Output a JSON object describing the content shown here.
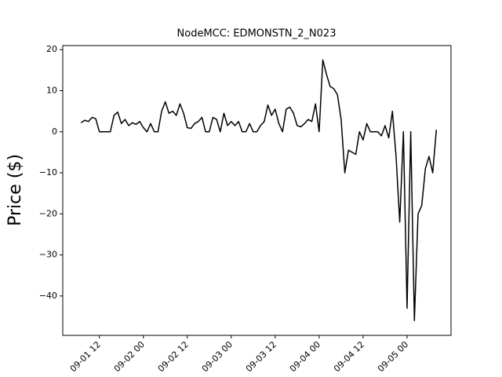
{
  "chart_data": {
    "type": "line",
    "title": "NodeMCC: EDMONSTN_2_N023",
    "y_label": "Price ($)",
    "x": [
      "09-01 07",
      "09-01 08",
      "09-01 09",
      "09-01 10",
      "09-01 11",
      "09-01 12",
      "09-01 13",
      "09-01 14",
      "09-01 15",
      "09-01 16",
      "09-01 17",
      "09-01 18",
      "09-01 19",
      "09-01 20",
      "09-01 21",
      "09-01 22",
      "09-01 23",
      "09-02 00",
      "09-02 01",
      "09-02 02",
      "09-02 03",
      "09-02 04",
      "09-02 05",
      "09-02 06",
      "09-02 07",
      "09-02 08",
      "09-02 09",
      "09-02 10",
      "09-02 11",
      "09-02 12",
      "09-02 13",
      "09-02 14",
      "09-02 15",
      "09-02 16",
      "09-02 17",
      "09-02 18",
      "09-02 19",
      "09-02 20",
      "09-02 21",
      "09-02 22",
      "09-02 23",
      "09-03 00",
      "09-03 01",
      "09-03 02",
      "09-03 03",
      "09-03 04",
      "09-03 05",
      "09-03 06",
      "09-03 07",
      "09-03 08",
      "09-03 09",
      "09-03 10",
      "09-03 11",
      "09-03 12",
      "09-03 13",
      "09-03 14",
      "09-03 15",
      "09-03 16",
      "09-03 17",
      "09-03 18",
      "09-03 19",
      "09-03 20",
      "09-03 21",
      "09-03 22",
      "09-03 23",
      "09-04 00",
      "09-04 01",
      "09-04 02",
      "09-04 03",
      "09-04 04",
      "09-04 05",
      "09-04 06",
      "09-04 07",
      "09-04 08",
      "09-04 09",
      "09-04 10",
      "09-04 11",
      "09-04 12",
      "09-04 13",
      "09-04 14",
      "09-04 15",
      "09-04 16",
      "09-04 17",
      "09-04 18",
      "09-04 19",
      "09-04 20",
      "09-04 21",
      "09-04 22",
      "09-04 23",
      "09-05 00",
      "09-05 01",
      "09-05 02",
      "09-05 03",
      "09-05 04",
      "09-05 05",
      "09-05 06",
      "09-05 07",
      "09-05 08"
    ],
    "series": [
      {
        "name": "EDMONSTN_2_N023",
        "color": "#000000",
        "values": [
          2.2,
          2.8,
          2.5,
          3.5,
          3.2,
          0,
          0,
          0,
          0,
          4,
          4.8,
          2,
          3,
          1.5,
          2.2,
          1.8,
          2.5,
          1,
          0,
          2,
          0,
          0,
          5,
          7.3,
          4.5,
          5,
          4,
          6.8,
          4.5,
          1,
          0.8,
          2,
          2.5,
          3.5,
          0,
          0,
          3.5,
          3,
          0,
          4.5,
          1.5,
          2.5,
          1.5,
          2.5,
          0,
          0,
          2,
          0,
          0,
          1.5,
          2.5,
          6.5,
          4,
          5.5,
          2,
          0,
          5.5,
          6,
          4.5,
          1.5,
          1.2,
          2,
          3,
          2.5,
          6.8,
          0,
          17.5,
          14,
          11,
          10.5,
          9,
          3,
          -10,
          -4.5,
          -5,
          -5.5,
          0,
          -2,
          2,
          0,
          0,
          0,
          -1,
          1.5,
          -1.5,
          5,
          -6,
          -22,
          0,
          -43,
          0,
          -46,
          -20,
          -18,
          -9,
          -6,
          -10,
          0.5
        ]
      }
    ],
    "xlim": [
      "09-01 02",
      "09-05 12"
    ],
    "xticks": [
      "09-01 12",
      "09-02 00",
      "09-02 12",
      "09-03 00",
      "09-03 12",
      "09-04 00",
      "09-04 12",
      "09-05 00"
    ],
    "ylim": [
      -49.6,
      21
    ],
    "yticks": [
      {
        "value": -40,
        "label": "−40"
      },
      {
        "value": -30,
        "label": "−30"
      },
      {
        "value": -20,
        "label": "−20"
      },
      {
        "value": -10,
        "label": "−10"
      },
      0,
      10,
      20
    ]
  }
}
